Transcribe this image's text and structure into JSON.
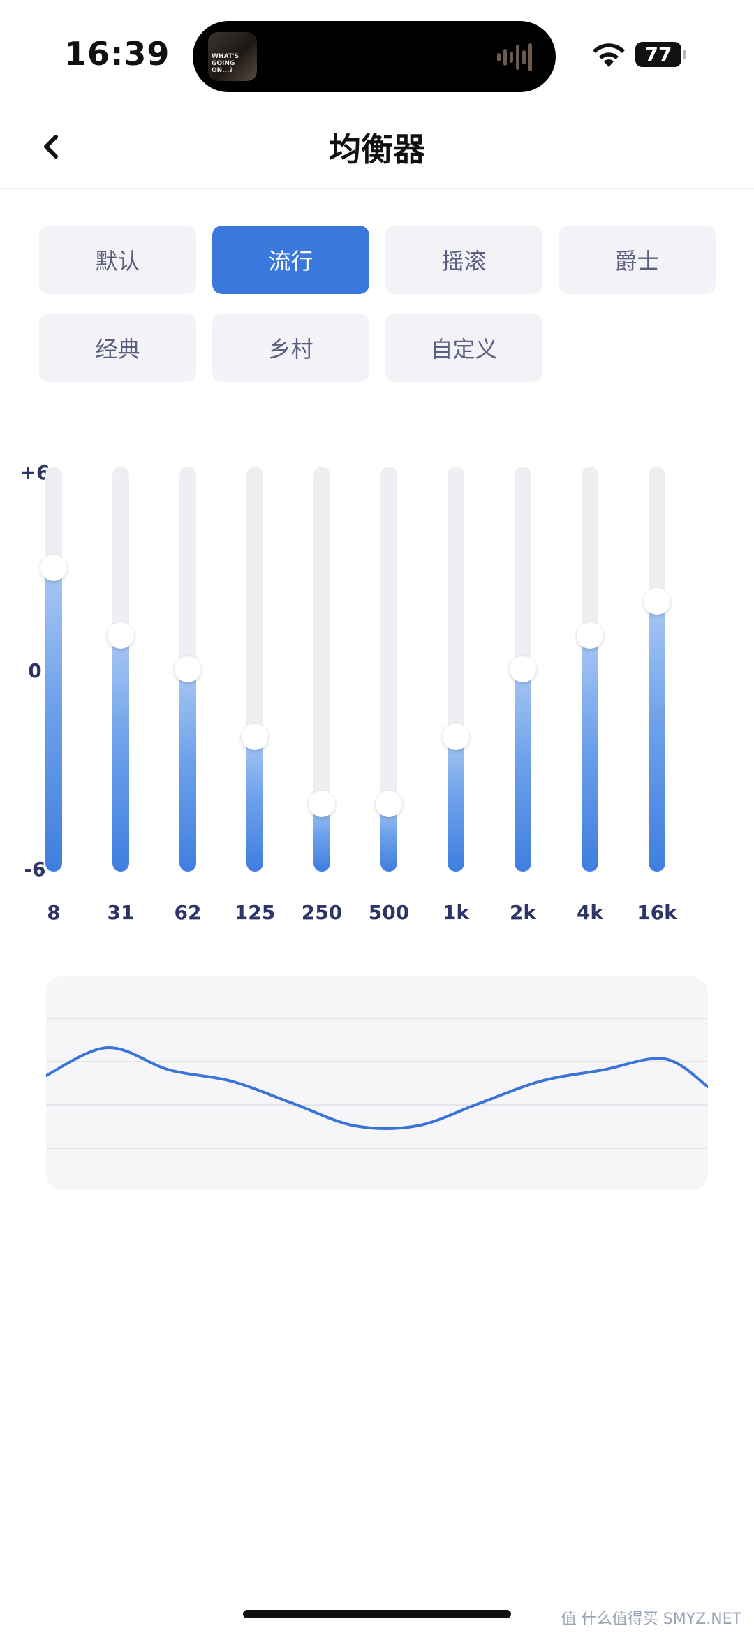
{
  "status_bar": {
    "time": "16:39",
    "battery_level": "77",
    "now_playing_art_text": "WHAT'S GOING ON...?",
    "icons": [
      "wifi-icon",
      "battery-icon",
      "audio-waveform-icon"
    ]
  },
  "nav": {
    "title": "均衡器",
    "back_icon": "chevron-left-icon"
  },
  "presets": [
    {
      "label": "默认",
      "active": false
    },
    {
      "label": "流行",
      "active": true
    },
    {
      "label": "摇滚",
      "active": false
    },
    {
      "label": "爵士",
      "active": false
    },
    {
      "label": "经典",
      "active": false
    },
    {
      "label": "乡村",
      "active": false
    },
    {
      "label": "自定义",
      "active": false
    }
  ],
  "eq": {
    "scale": {
      "max_label": "+6",
      "mid_label": "0",
      "min_label": "-6",
      "max": 6,
      "min": -6
    },
    "bands": [
      {
        "label": "8",
        "gain": 3
      },
      {
        "label": "31",
        "gain": 1
      },
      {
        "label": "62",
        "gain": 0
      },
      {
        "label": "125",
        "gain": -2
      },
      {
        "label": "250",
        "gain": -4
      },
      {
        "label": "500",
        "gain": -4
      },
      {
        "label": "1k",
        "gain": -2
      },
      {
        "label": "2k",
        "gain": 0
      },
      {
        "label": "4k",
        "gain": 1
      },
      {
        "label": "16k",
        "gain": 2
      }
    ]
  },
  "colors": {
    "accent": "#3a78dd",
    "curve": "#3a74d6",
    "text_dark": "#2d3566"
  },
  "watermark": "值 什么值得买 SMYZ.NET"
}
